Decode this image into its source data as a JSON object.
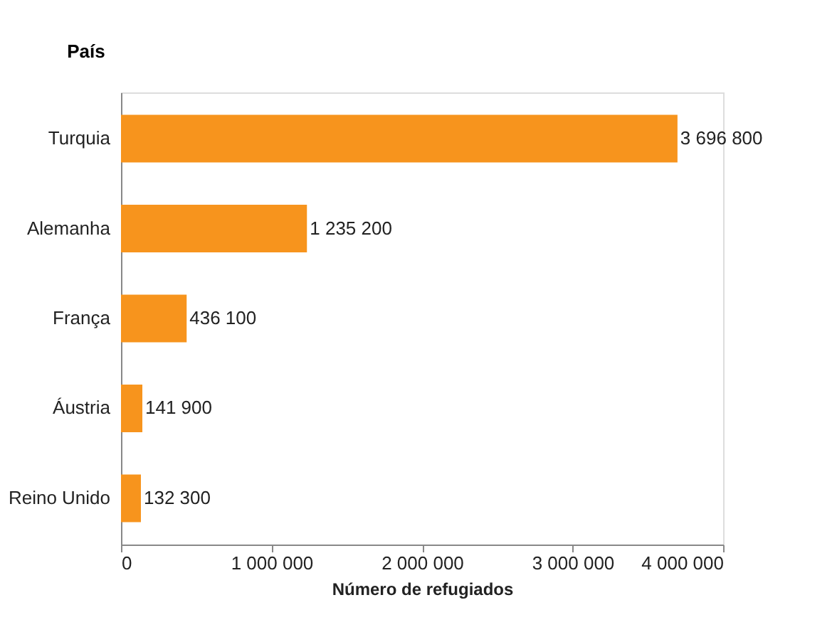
{
  "chart_data": {
    "type": "bar",
    "orientation": "horizontal",
    "ylabel": "País",
    "xlabel": "Número de refugiados",
    "categories": [
      "Turquia",
      "Alemanha",
      "França",
      "Áustria",
      "Reino Unido"
    ],
    "values": [
      3696800,
      1235200,
      436100,
      141900,
      132300
    ],
    "value_labels": [
      "3 696 800",
      "1 235 200",
      "436 100",
      "141 900",
      "132 300"
    ],
    "color": "#f7941d",
    "xlim": [
      0,
      4000000
    ],
    "xticks": [
      {
        "value": 0,
        "label": "0"
      },
      {
        "value": 1000000,
        "label": "1 000 000"
      },
      {
        "value": 2000000,
        "label": "2 000 000"
      },
      {
        "value": 3000000,
        "label": "3 000 000"
      },
      {
        "value": 4000000,
        "label": "4 000 000"
      }
    ],
    "grid": false
  }
}
